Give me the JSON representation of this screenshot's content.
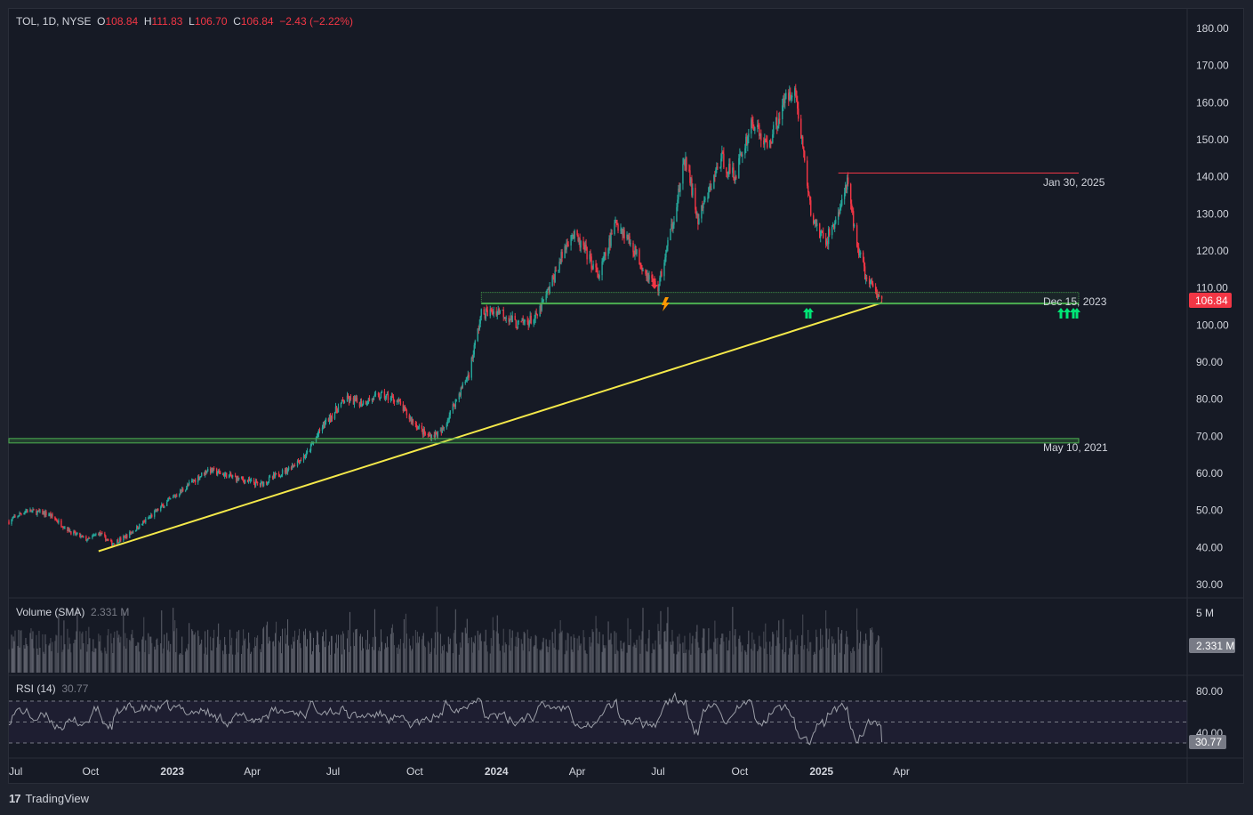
{
  "header": {
    "symbol": "TOL, 1D, NYSE",
    "o_label": "O",
    "o_value": "108.84",
    "h_label": "H",
    "h_value": "111.83",
    "l_label": "L",
    "l_value": "106.70",
    "c_label": "C",
    "c_value": "106.84",
    "change": "−2.43 (−2.22%)"
  },
  "volume": {
    "label": "Volume (SMA)",
    "value": "2.331 M",
    "axis_label": "5 M",
    "badge": "2.331 M"
  },
  "rsi": {
    "label": "RSI (14)",
    "value": "30.77",
    "axis_top": "80.00",
    "axis_mid": "40.00",
    "badge": "30.77"
  },
  "price_badge": "106.84",
  "annotations": {
    "jan30": "Jan 30, 2025",
    "dec15": "Dec 15, 2023",
    "may10": "May 10, 2021"
  },
  "footer": {
    "brand": "TradingView",
    "logo": "17"
  },
  "colors": {
    "up": "#26a69a",
    "down": "#f23645",
    "trend": "#f5e94a",
    "support": "#4caf50",
    "arrow": "#00e676"
  },
  "chart_data": {
    "type": "candlestick",
    "price_axis": [
      "180.00",
      "170.00",
      "160.00",
      "150.00",
      "140.00",
      "130.00",
      "120.00",
      "110.00",
      "100.00",
      "90.00",
      "80.00",
      "70.00",
      "60.00",
      "50.00",
      "40.00",
      "30.00"
    ],
    "ylim": [
      30,
      180
    ],
    "x_ticks": [
      "Jul",
      "Oct",
      "2023",
      "Apr",
      "Jul",
      "Oct",
      "2024",
      "Apr",
      "Jul",
      "Oct",
      "2025",
      "Apr"
    ],
    "price_path": [
      [
        "2022-07-01",
        47
      ],
      [
        "2022-07-20",
        50
      ],
      [
        "2022-08-15",
        49
      ],
      [
        "2022-09-10",
        44
      ],
      [
        "2022-09-28",
        42
      ],
      [
        "2022-10-10",
        44
      ],
      [
        "2022-10-25",
        41
      ],
      [
        "2022-11-10",
        43
      ],
      [
        "2022-12-01",
        47
      ],
      [
        "2022-12-20",
        51
      ],
      [
        "2023-01-20",
        57
      ],
      [
        "2023-02-10",
        61
      ],
      [
        "2023-03-10",
        59
      ],
      [
        "2023-04-10",
        57
      ],
      [
        "2023-05-10",
        61
      ],
      [
        "2023-06-01",
        65
      ],
      [
        "2023-06-20",
        73
      ],
      [
        "2023-07-15",
        80
      ],
      [
        "2023-08-01",
        79
      ],
      [
        "2023-08-25",
        81
      ],
      [
        "2023-09-10",
        80
      ],
      [
        "2023-09-25",
        75
      ],
      [
        "2023-10-15",
        70
      ],
      [
        "2023-10-31",
        71
      ],
      [
        "2023-11-15",
        79
      ],
      [
        "2023-12-01",
        87
      ],
      [
        "2023-12-15",
        103
      ],
      [
        "2024-01-05",
        104
      ],
      [
        "2024-01-25",
        100
      ],
      [
        "2024-02-15",
        102
      ],
      [
        "2024-03-01",
        110
      ],
      [
        "2024-03-25",
        125
      ],
      [
        "2024-04-10",
        120
      ],
      [
        "2024-04-25",
        113
      ],
      [
        "2024-05-15",
        128
      ],
      [
        "2024-06-01",
        122
      ],
      [
        "2024-06-15",
        115
      ],
      [
        "2024-07-01",
        110
      ],
      [
        "2024-07-15",
        125
      ],
      [
        "2024-08-01",
        145
      ],
      [
        "2024-08-15",
        128
      ],
      [
        "2024-09-10",
        145
      ],
      [
        "2024-09-25",
        140
      ],
      [
        "2024-10-15",
        155
      ],
      [
        "2024-11-01",
        148
      ],
      [
        "2024-11-20",
        160
      ],
      [
        "2024-12-01",
        165
      ],
      [
        "2024-12-10",
        150
      ],
      [
        "2024-12-20",
        130
      ],
      [
        "2025-01-05",
        122
      ],
      [
        "2025-01-20",
        130
      ],
      [
        "2025-01-30",
        138
      ],
      [
        "2025-02-10",
        122
      ],
      [
        "2025-02-20",
        113
      ],
      [
        "2025-03-05",
        108
      ],
      [
        "2025-03-10",
        106.84
      ]
    ],
    "trendline": {
      "from": [
        "2022-10-10",
        39
      ],
      "to": [
        "2025-03-10",
        106
      ]
    },
    "support_levels": [
      {
        "value": 105.8,
        "from": "2023-12-15",
        "label": "Dec 15, 2023"
      },
      {
        "value": 69,
        "from": "2022-07-01",
        "label": "May 10, 2021"
      },
      {
        "value": 141,
        "from": "2025-01-20",
        "label": "Jan 30, 2025"
      }
    ],
    "rsi_levels": [
      70,
      50,
      30
    ]
  }
}
